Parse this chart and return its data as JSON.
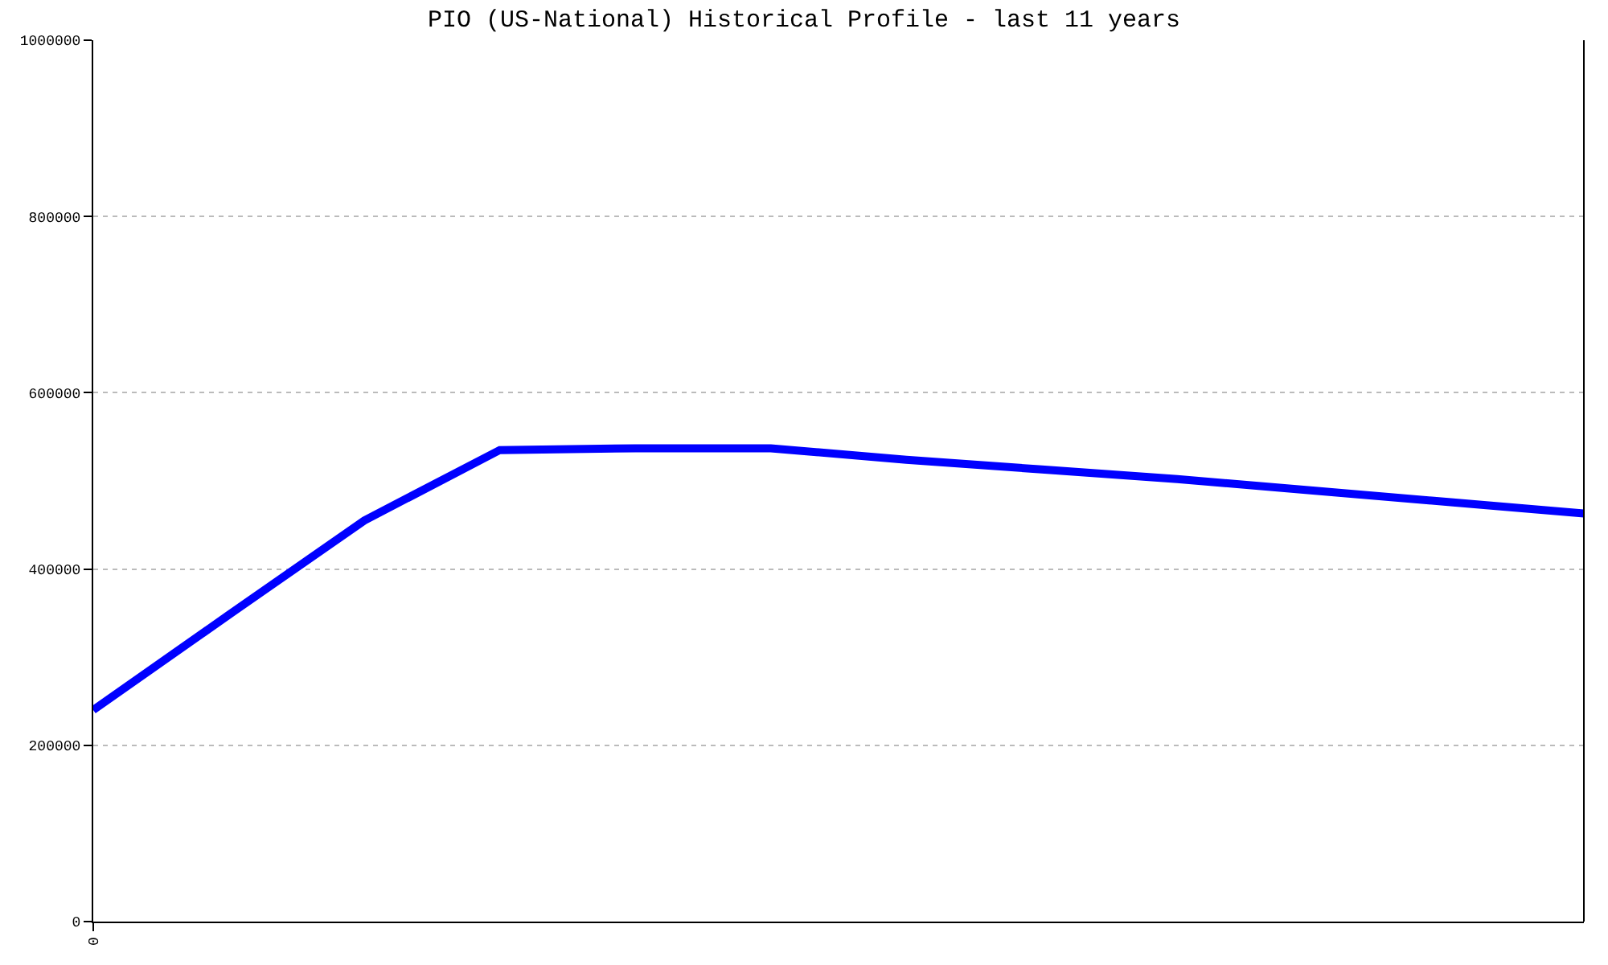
{
  "chart_data": {
    "type": "line",
    "title": "PIO (US-National) Historical Profile - last 11 years",
    "categories": [
      "0",
      null,
      null,
      null,
      null,
      null,
      null,
      null,
      null,
      null,
      null,
      null
    ],
    "series": [
      {
        "color": "#0000ff",
        "values": [
          240000,
          348000,
          455000,
          535000,
          537000,
          537000,
          524000,
          513000,
          502000,
          489000,
          476000,
          463000
        ]
      }
    ],
    "ylim": [
      0,
      1000000
    ],
    "yticks": [
      0,
      200000,
      400000,
      600000,
      800000,
      1000000
    ],
    "grid": "y",
    "marker": "none",
    "line_style": "solid"
  }
}
